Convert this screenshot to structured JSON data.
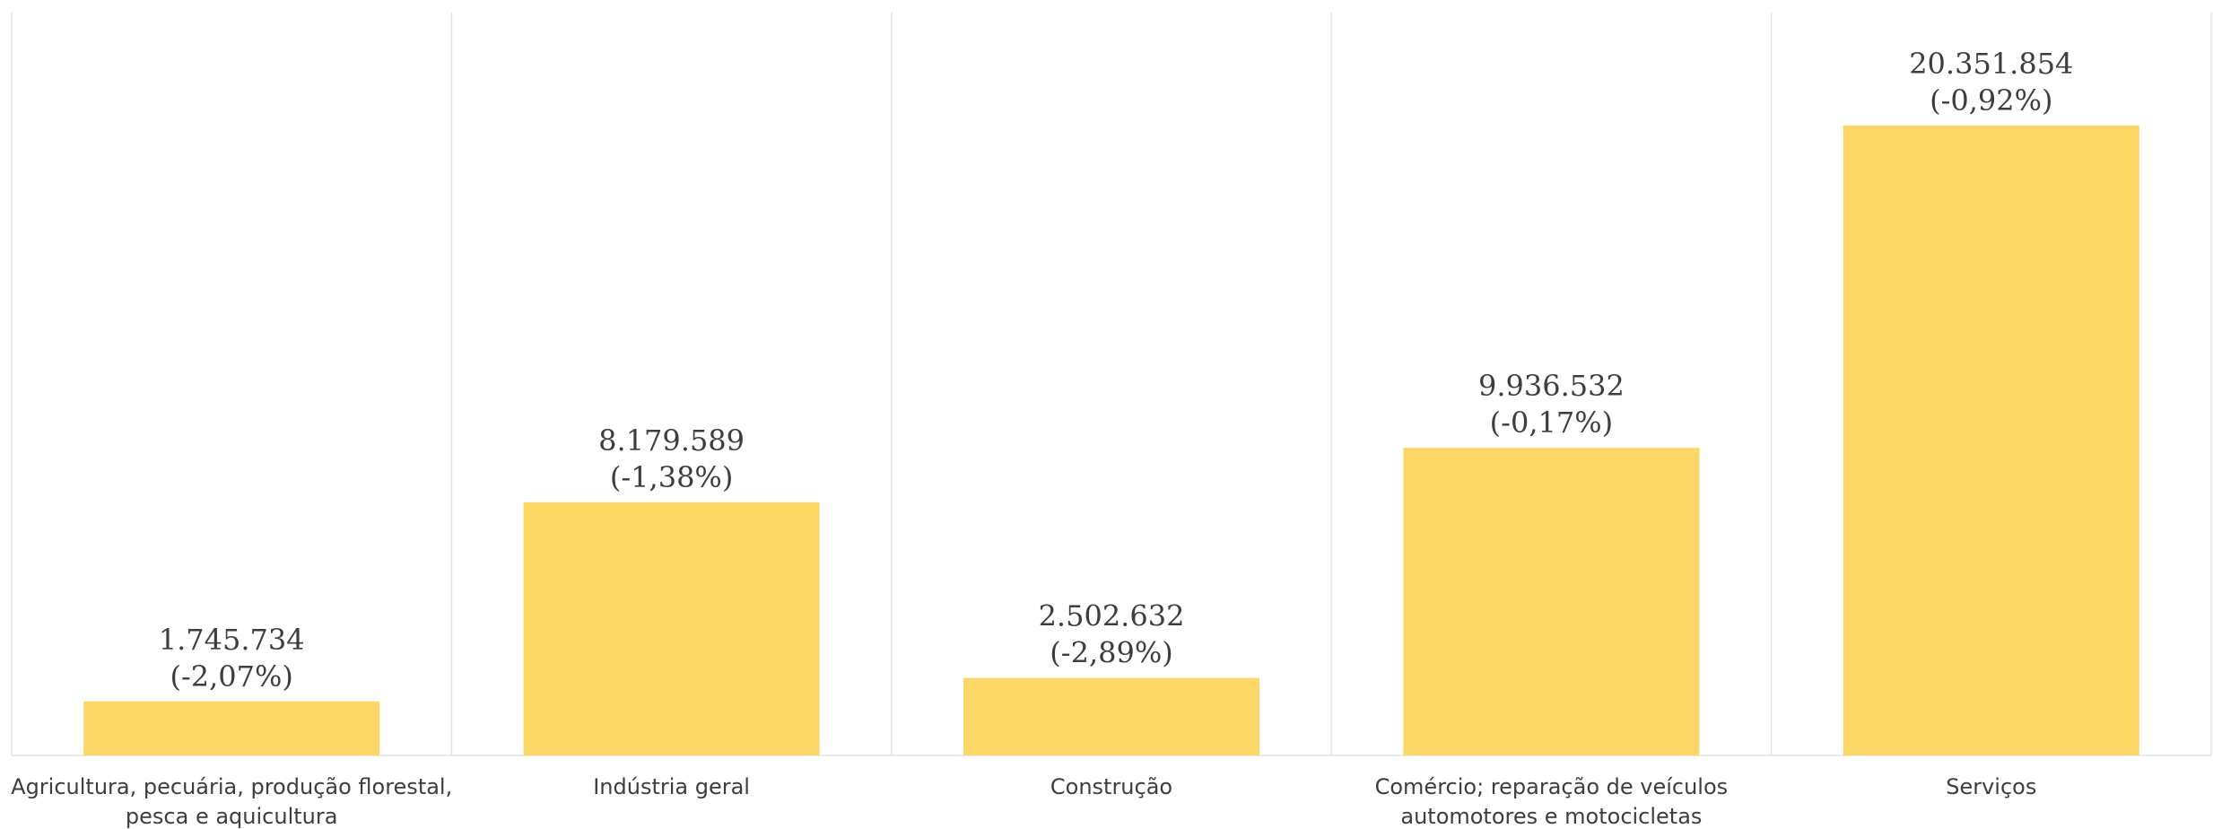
{
  "chart_data": {
    "type": "bar",
    "categories": [
      [
        "Agricultura, pecuária, produção florestal,",
        "pesca e aquicultura"
      ],
      [
        "Indústria geral"
      ],
      [
        "Construção"
      ],
      [
        "Comércio; reparação de veículos",
        "automotores e motocicletas"
      ],
      [
        "Serviços"
      ]
    ],
    "values": [
      1745734,
      8179589,
      2502632,
      9936532,
      20351854
    ],
    "value_labels": [
      "1.745.734",
      "8.179.589",
      "2.502.632",
      "9.936.532",
      "20.351.854"
    ],
    "change_labels": [
      "(-2,07%)",
      "(-1,38%)",
      "(-2,89%)",
      "(-0,17%)",
      "(-0,92%)"
    ],
    "bar_color": "#FCD765",
    "grid_color": "#E3E3E3",
    "text_color": "#3D3D3D",
    "ylim": [
      0,
      24000000
    ],
    "grid": "vertical-separators",
    "legend": "none",
    "title": "",
    "xlabel": "",
    "ylabel": ""
  }
}
